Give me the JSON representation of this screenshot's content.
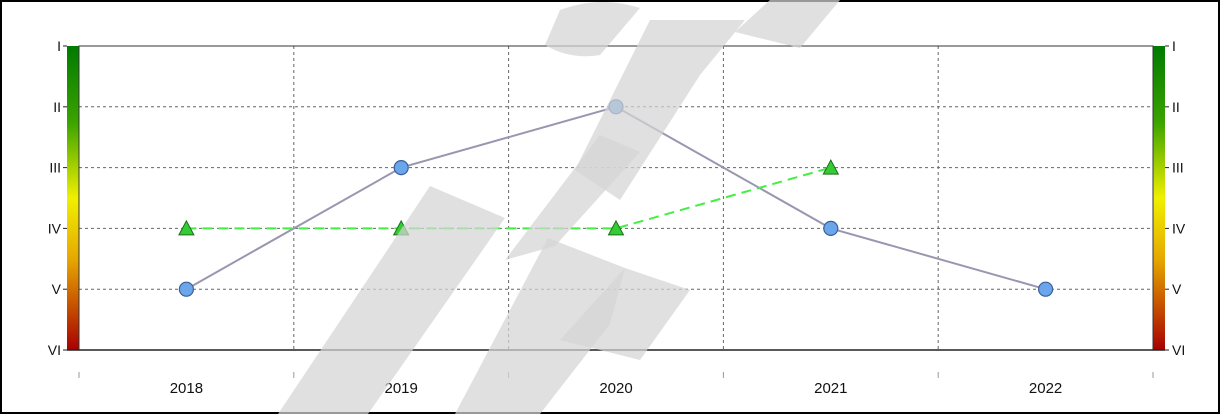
{
  "watermark": "IECI",
  "chart_data": {
    "type": "line",
    "categories": [
      "2018",
      "2019",
      "2020",
      "2021",
      "2022"
    ],
    "y_scale": {
      "top": 1,
      "bottom": 6
    },
    "y_tick_labels": [
      "I",
      "II",
      "III",
      "IV",
      "V",
      "VI"
    ],
    "grid": true,
    "legend": "none",
    "color_scale": "green at I to red at VI, on both side axes",
    "series": [
      {
        "marker": "circle",
        "line_style": "solid",
        "color": "#9a96b0",
        "marker_color": "#6ca6ea",
        "values": [
          5,
          3,
          2,
          4,
          5
        ]
      },
      {
        "marker": "triangle",
        "line_style": "dashed",
        "color": "#44ee44",
        "marker_color": "#33cc33",
        "values": [
          4,
          4,
          4,
          3,
          null
        ]
      }
    ]
  }
}
